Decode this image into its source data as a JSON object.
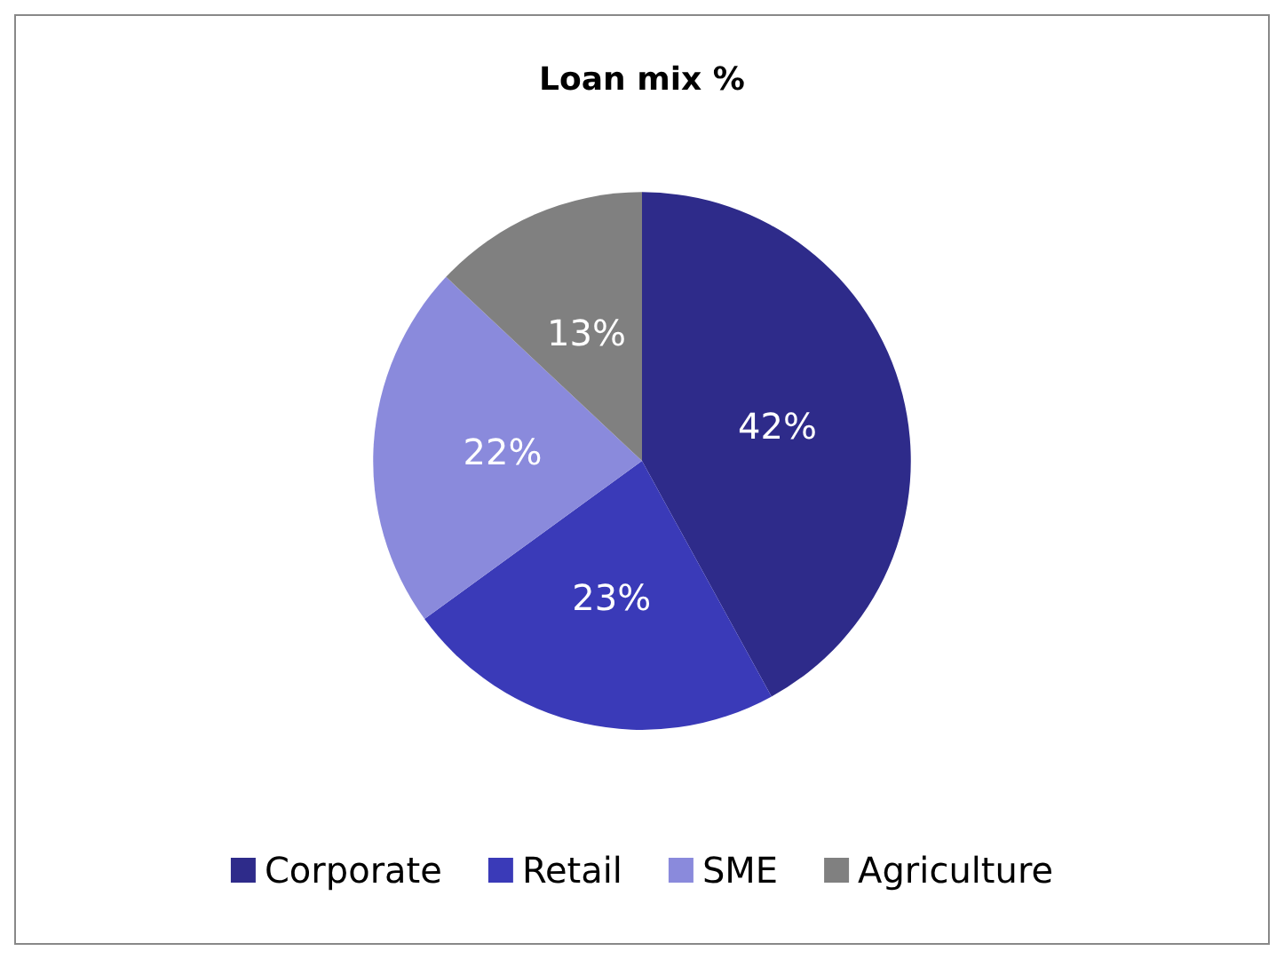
{
  "chart_data": {
    "type": "pie",
    "title": "Loan mix %",
    "categories": [
      "Corporate",
      "Retail",
      "SME",
      "Agriculture"
    ],
    "values": [
      42,
      23,
      22,
      13
    ],
    "colors": [
      "#2e2b8a",
      "#3a3ab8",
      "#8a8adc",
      "#808080"
    ],
    "value_labels": [
      "42%",
      "23%",
      "22%",
      "13%"
    ],
    "legend": "bottom"
  }
}
